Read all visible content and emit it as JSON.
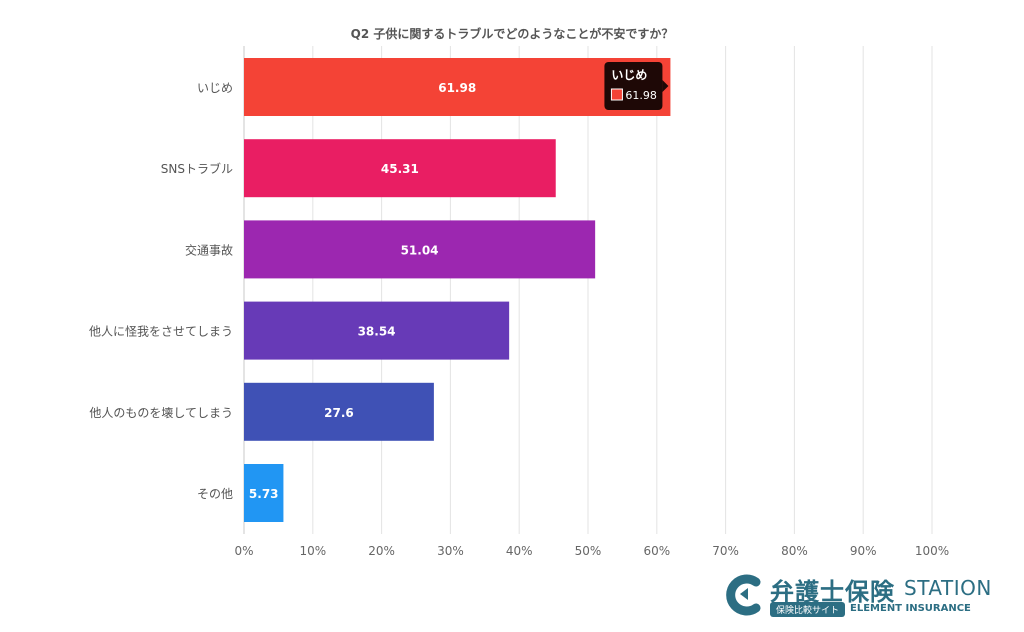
{
  "chart_data": {
    "type": "bar",
    "orientation": "horizontal",
    "title": "Q2 子供に関するトラブルでどのようなことが不安ですか？",
    "categories": [
      "いじめ",
      "SNSトラブル",
      "交通事故",
      "他人に怪我をさせてしまう",
      "他人のものを壊してしまう",
      "その他"
    ],
    "values": [
      61.98,
      45.31,
      51.04,
      38.54,
      27.6,
      5.73
    ],
    "data_labels": [
      "61.98",
      "45.31",
      "51.04",
      "38.54",
      "27.6",
      "5.73"
    ],
    "colors": [
      "#f44336",
      "#e91e63",
      "#9c27b0",
      "#673ab7",
      "#3f51b5",
      "#2196f3"
    ],
    "xlim": [
      0,
      100
    ],
    "x_ticks": [
      "0%",
      "10%",
      "20%",
      "30%",
      "40%",
      "50%",
      "60%",
      "70%",
      "80%",
      "90%",
      "100%"
    ],
    "grid": true,
    "legend": "none",
    "tooltip": {
      "title": "いじめ",
      "value": "61.98",
      "color": "#f44336",
      "category_index": 0
    }
  },
  "brand": {
    "name": "弁護士保険",
    "station": "STATION",
    "pill": "保険比較サイト",
    "english": "ELEMENT INSURANCE",
    "color": "#2c6e83"
  }
}
